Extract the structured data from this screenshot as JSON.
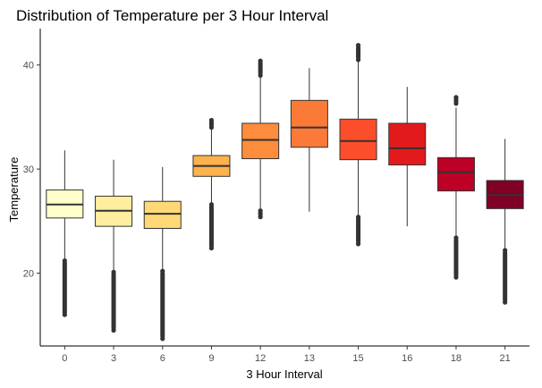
{
  "chart_data": {
    "type": "box",
    "title": "Distribution of Temperature per 3 Hour Interval",
    "xlabel": "3 Hour Interval",
    "ylabel": "Temperature",
    "ylim": [
      13,
      43.5
    ],
    "yticks": [
      20,
      30,
      40
    ],
    "grid": false,
    "legend": "none",
    "categories": [
      "0",
      "3",
      "6",
      "9",
      "12",
      "13",
      "15",
      "16",
      "18",
      "21"
    ],
    "colors": [
      "#FFFFCC",
      "#FFEDA0",
      "#FED976",
      "#FEB24C",
      "#FD8D3C",
      "#FC7A38",
      "#FC4E2A",
      "#E31A1C",
      "#BD0026",
      "#800026"
    ],
    "boxes": [
      {
        "whisker_low": 21.2,
        "q1": 25.3,
        "median": 26.6,
        "q3": 28.0,
        "whisker_high": 31.8,
        "outliers_low": [
          16.0,
          21.2
        ],
        "outliers_high": []
      },
      {
        "whisker_low": 20.1,
        "q1": 24.5,
        "median": 26.0,
        "q3": 27.4,
        "whisker_high": 30.9,
        "outliers_low": [
          14.5,
          20.1
        ],
        "outliers_high": []
      },
      {
        "whisker_low": 20.2,
        "q1": 24.3,
        "median": 25.7,
        "q3": 26.9,
        "whisker_high": 30.2,
        "outliers_low": [
          13.7,
          20.2
        ],
        "outliers_high": []
      },
      {
        "whisker_low": 26.6,
        "q1": 29.3,
        "median": 30.3,
        "q3": 31.3,
        "whisker_high": 33.9,
        "outliers_low": [
          22.4,
          26.6
        ],
        "outliers_high": [
          34.0,
          34.7
        ]
      },
      {
        "whisker_low": 26.0,
        "q1": 31.0,
        "median": 32.8,
        "q3": 34.4,
        "whisker_high": 38.9,
        "outliers_low": [
          25.4,
          26.0
        ],
        "outliers_high": [
          39.0,
          40.4
        ]
      },
      {
        "whisker_low": 25.9,
        "q1": 32.1,
        "median": 34.0,
        "q3": 36.6,
        "whisker_high": 39.7,
        "outliers_low": [],
        "outliers_high": []
      },
      {
        "whisker_low": 25.4,
        "q1": 30.9,
        "median": 32.7,
        "q3": 34.8,
        "whisker_high": 40.4,
        "outliers_low": [
          22.8,
          25.4
        ],
        "outliers_high": [
          40.5,
          41.9
        ]
      },
      {
        "whisker_low": 24.5,
        "q1": 30.4,
        "median": 32.0,
        "q3": 34.4,
        "whisker_high": 37.9,
        "outliers_low": [],
        "outliers_high": []
      },
      {
        "whisker_low": 23.6,
        "q1": 27.9,
        "median": 29.7,
        "q3": 31.1,
        "whisker_high": 35.9,
        "outliers_low": [
          19.6,
          23.4
        ],
        "outliers_high": [
          36.3,
          36.9
        ]
      },
      {
        "whisker_low": 22.4,
        "q1": 26.2,
        "median": 27.5,
        "q3": 28.9,
        "whisker_high": 32.9,
        "outliers_low": [
          17.2,
          22.2
        ],
        "outliers_high": []
      }
    ]
  }
}
